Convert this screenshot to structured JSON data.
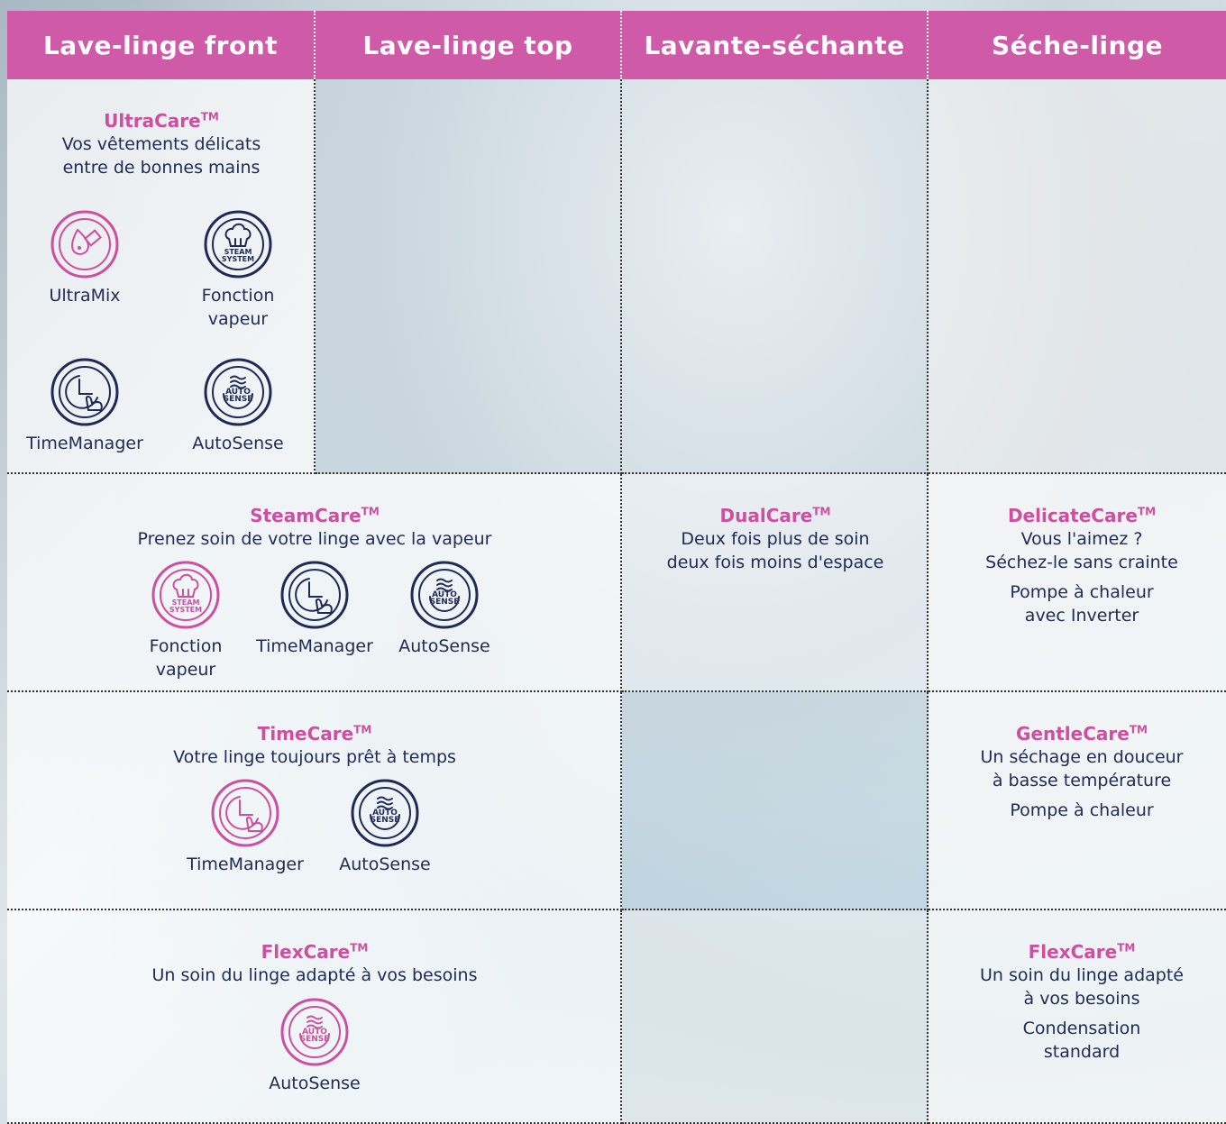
{
  "header": [
    "Lave-linge front",
    "Lave-linge top",
    "Lavante-séchante",
    "Séche-linge"
  ],
  "icon_texts": {
    "steam": [
      "STEAM",
      "SYSTEM"
    ],
    "auto": [
      "AUTO",
      "SENSE"
    ]
  },
  "cells": [
    {
      "title": "UltraCare",
      "mark": "TM",
      "lines": [
        "Vos vêtements délicats",
        "entre de bonnes mains"
      ],
      "features": [
        [
          "UltraMix"
        ],
        [
          "Fonction",
          "vapeur"
        ],
        [
          "TimeManager"
        ],
        [
          "AutoSense"
        ]
      ]
    },
    {
      "title": "SteamCare",
      "mark": "TM",
      "lines": [
        "Prenez soin de votre linge avec la vapeur"
      ],
      "features": [
        [
          "Fonction",
          "vapeur"
        ],
        [
          "TimeManager"
        ],
        [
          "AutoSense"
        ]
      ]
    },
    {
      "title": "DualCare",
      "mark": "TM",
      "lines": [
        "Deux fois plus de soin",
        "deux fois moins d'espace"
      ]
    },
    {
      "title": "DelicateCare",
      "mark": "TM",
      "lines": [
        "Vous l'aimez ?",
        "Séchez-le sans crainte"
      ],
      "notes": [
        "Pompe à chaleur",
        "avec Inverter"
      ]
    },
    {
      "title": "TimeCare",
      "mark": "TM",
      "lines": [
        "Votre linge toujours prêt à temps"
      ],
      "features": [
        [
          "TimeManager"
        ],
        [
          "AutoSense"
        ]
      ]
    },
    {
      "title": "GentleCare",
      "mark": "TM",
      "lines": [
        "Un séchage en douceur",
        "à basse température"
      ],
      "notes": [
        "Pompe à chaleur"
      ]
    },
    {
      "title": "FlexCare",
      "mark": "TM",
      "lines": [
        "Un soin du linge adapté à vos besoins"
      ],
      "features": [
        [
          "AutoSense"
        ]
      ]
    },
    {
      "title": "FlexCare",
      "mark": "TM",
      "lines": [
        "Un soin du linge adapté",
        "à vos besoins"
      ],
      "notes": [
        "Condensation",
        "standard"
      ]
    }
  ]
}
